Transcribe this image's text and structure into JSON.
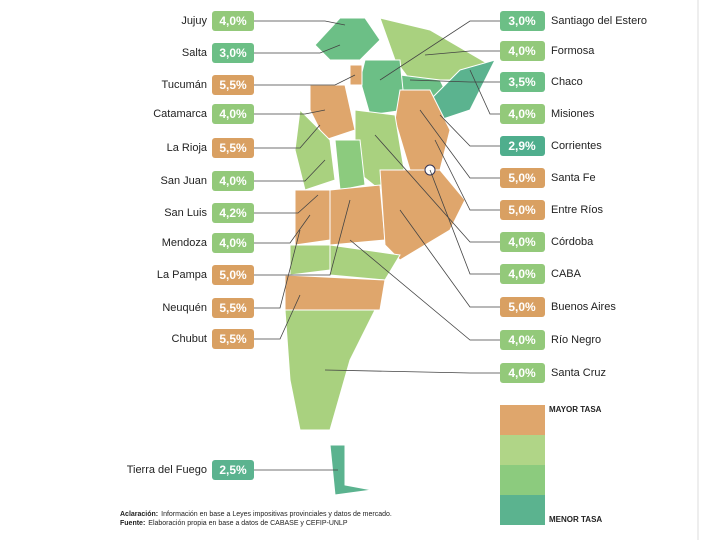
{
  "provinces_left": [
    {
      "name": "Jujuy",
      "rate": "4,0%",
      "color": "#93c97a"
    },
    {
      "name": "Salta",
      "rate": "3,0%",
      "color": "#6cbf86"
    },
    {
      "name": "Tucumán",
      "rate": "5,5%",
      "color": "#d9a062"
    },
    {
      "name": "Catamarca",
      "rate": "4,0%",
      "color": "#93c97a"
    },
    {
      "name": "La Rioja",
      "rate": "5,5%",
      "color": "#d9a062"
    },
    {
      "name": "San Juan",
      "rate": "4,0%",
      "color": "#93c97a"
    },
    {
      "name": "San Luis",
      "rate": "4,2%",
      "color": "#93c97a"
    },
    {
      "name": "Mendoza",
      "rate": "4,0%",
      "color": "#93c97a"
    },
    {
      "name": "La Pampa",
      "rate": "5,0%",
      "color": "#d9a062"
    },
    {
      "name": "Neuquén",
      "rate": "5,5%",
      "color": "#d9a062"
    },
    {
      "name": "Chubut",
      "rate": "5,5%",
      "color": "#d9a062"
    },
    {
      "name": "Tierra del Fuego",
      "rate": "2,5%",
      "color": "#5bb38f"
    }
  ],
  "provinces_right": [
    {
      "name": "Santiago del Estero",
      "rate": "3,0%",
      "color": "#6cbf86"
    },
    {
      "name": "Formosa",
      "rate": "4,0%",
      "color": "#93c97a"
    },
    {
      "name": "Chaco",
      "rate": "3,5%",
      "color": "#6cbf86"
    },
    {
      "name": "Misiones",
      "rate": "4,0%",
      "color": "#93c97a"
    },
    {
      "name": "Corrientes",
      "rate": "2,9%",
      "color": "#4fae8d"
    },
    {
      "name": "Santa Fe",
      "rate": "5,0%",
      "color": "#d9a062"
    },
    {
      "name": "Entre Ríos",
      "rate": "5,0%",
      "color": "#d9a062"
    },
    {
      "name": "Córdoba",
      "rate": "4,0%",
      "color": "#93c97a"
    },
    {
      "name": "CABA",
      "rate": "4,0%",
      "color": "#93c97a"
    },
    {
      "name": "Buenos Aires",
      "rate": "5,0%",
      "color": "#d9a062"
    },
    {
      "name": "Río Negro",
      "rate": "4,0%",
      "color": "#93c97a"
    },
    {
      "name": "Santa Cruz",
      "rate": "4,0%",
      "color": "#93c97a"
    }
  ],
  "legend": {
    "top": "MAYOR TASA",
    "bottom": "MENOR TASA",
    "colors": [
      "#dfa66c",
      "#b0d587",
      "#8ccb7e",
      "#5bb38f"
    ]
  },
  "notes": [
    {
      "label": "Aclaración:",
      "text": "Información en base a Leyes impositivas provinciales y datos de mercado."
    },
    {
      "label": "Fuente:",
      "text": "Elaboración propia en base a datos de CABASE y CEFIP-UNLP"
    }
  ]
}
